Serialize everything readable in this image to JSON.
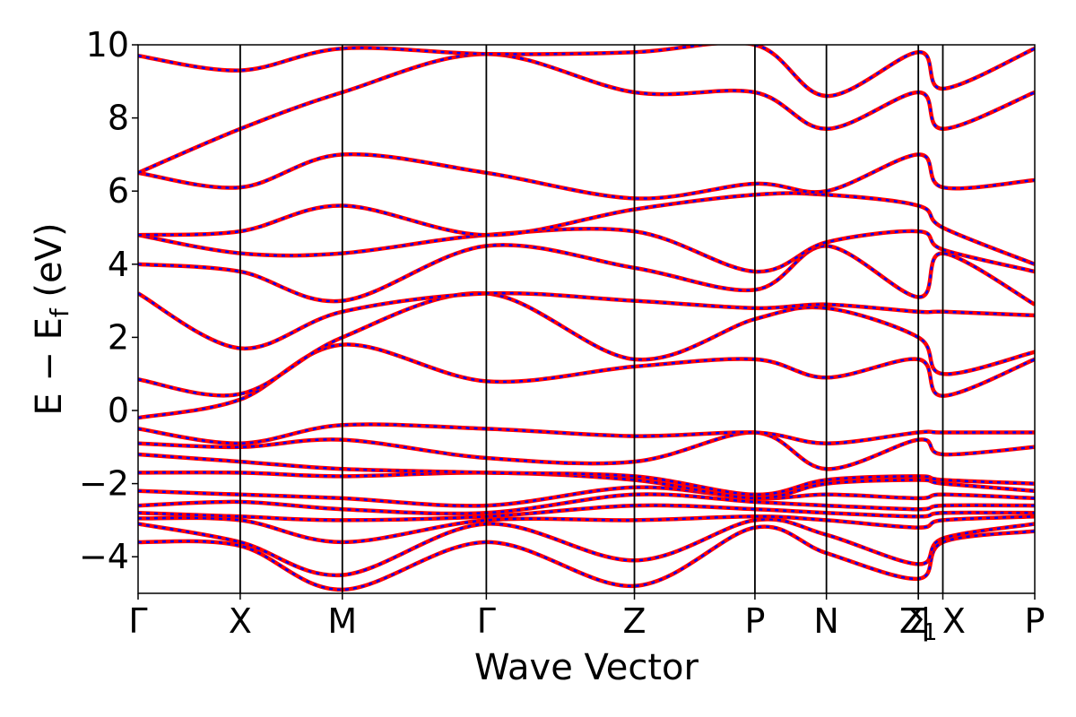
{
  "chart_data": {
    "type": "line",
    "title": "",
    "xlabel": "Wave Vector",
    "ylabel": "E − E",
    "ylabel_sub": "f",
    "ylabel_unit": " (eV)",
    "ylim": [
      -5,
      10
    ],
    "yticks": [
      -4,
      -2,
      0,
      2,
      4,
      6,
      8,
      10
    ],
    "ytick_labels": [
      "−4",
      "−2",
      "0",
      "2",
      "4",
      "6",
      "8",
      "10"
    ],
    "xlim": [
      0,
      8.78
    ],
    "kpoints": [
      {
        "label": "Γ",
        "x": 0.0
      },
      {
        "label": "X",
        "x": 1.0
      },
      {
        "label": "M",
        "x": 2.0
      },
      {
        "label": "Γ",
        "x": 3.41
      },
      {
        "label": "Z",
        "x": 4.86
      },
      {
        "label": "P",
        "x": 6.04
      },
      {
        "label": "N",
        "x": 6.74
      },
      {
        "label": "Σ",
        "x": 7.64
      },
      {
        "label": "Z1",
        "x": 7.64
      },
      {
        "label": "X",
        "x": 7.88
      },
      {
        "label": "P",
        "x": 8.78
      }
    ],
    "kpoint_tick_labels": [
      {
        "text": "Γ",
        "x": 0.0
      },
      {
        "text": "X",
        "x": 1.0
      },
      {
        "text": "M",
        "x": 2.0
      },
      {
        "text": "Γ",
        "x": 3.41
      },
      {
        "text": "Z",
        "x": 4.86
      },
      {
        "text": "P",
        "x": 6.04
      },
      {
        "text": "N",
        "x": 6.74
      },
      {
        "text": "Σ",
        "x": 7.64
      },
      {
        "text": "Z",
        "sub": "1",
        "x": 7.64
      },
      {
        "text": "| X",
        "x": 7.88
      },
      {
        "text": "P",
        "x": 8.78
      }
    ],
    "styles": {
      "band_colors": [
        "#ff0000",
        "#0000ff"
      ],
      "reference_style": "solid red",
      "overlay_style": "dashed blue"
    },
    "bands": [
      {
        "x": [
          0,
          1.0,
          2.0,
          3.41,
          4.86,
          6.04,
          6.74,
          7.64,
          7.88,
          8.78
        ],
        "y": [
          -3.6,
          -3.7,
          -4.9,
          -3.6,
          -4.8,
          -3.2,
          -3.9,
          -4.6,
          -3.6,
          -3.3
        ]
      },
      {
        "x": [
          0,
          1.0,
          2.0,
          3.41,
          4.86,
          6.04,
          6.74,
          7.64,
          7.88,
          8.78
        ],
        "y": [
          -3.1,
          -3.6,
          -4.5,
          -3.1,
          -4.1,
          -3.0,
          -3.4,
          -4.2,
          -3.5,
          -3.1
        ]
      },
      {
        "x": [
          0,
          1.0,
          2.0,
          3.41,
          4.86,
          6.04,
          6.74,
          7.64,
          7.88,
          8.78
        ],
        "y": [
          -2.95,
          -3.0,
          -3.6,
          -3.0,
          -3.0,
          -2.9,
          -3.0,
          -3.2,
          -3.0,
          -2.9
        ]
      },
      {
        "x": [
          0,
          1.0,
          2.0,
          3.41,
          4.86,
          6.04,
          6.74,
          7.64,
          7.88,
          8.78
        ],
        "y": [
          -2.8,
          -2.9,
          -3.0,
          -2.9,
          -2.6,
          -2.7,
          -2.8,
          -2.9,
          -2.8,
          -2.8
        ]
      },
      {
        "x": [
          0,
          1.0,
          2.0,
          3.41,
          4.86,
          6.04,
          6.74,
          7.64,
          7.88,
          8.78
        ],
        "y": [
          -2.6,
          -2.5,
          -2.7,
          -2.8,
          -2.3,
          -2.5,
          -2.6,
          -2.7,
          -2.6,
          -2.6
        ]
      },
      {
        "x": [
          0,
          1.0,
          2.0,
          3.41,
          4.86,
          6.04,
          6.74,
          7.64,
          7.88,
          8.78
        ],
        "y": [
          -2.2,
          -2.3,
          -2.4,
          -2.6,
          -2.1,
          -2.4,
          -2.3,
          -2.4,
          -2.3,
          -2.4
        ]
      },
      {
        "x": [
          0,
          1.0,
          2.0,
          3.41,
          4.86,
          6.04,
          6.74,
          7.64,
          7.88,
          8.78
        ],
        "y": [
          -1.7,
          -1.7,
          -1.8,
          -1.7,
          -1.9,
          -2.4,
          -2.0,
          -1.9,
          -2.0,
          -2.2
        ]
      },
      {
        "x": [
          0,
          1.0,
          2.0,
          3.41,
          4.86,
          6.04,
          6.74,
          7.64,
          7.88,
          8.78
        ],
        "y": [
          -1.2,
          -1.4,
          -1.6,
          -1.7,
          -1.8,
          -2.3,
          -1.9,
          -1.8,
          -1.9,
          -2.0
        ]
      },
      {
        "x": [
          0,
          1.0,
          2.0,
          3.41,
          4.86,
          6.04,
          6.74,
          7.64,
          7.88,
          8.78
        ],
        "y": [
          -0.9,
          -1.0,
          -0.8,
          -1.3,
          -1.4,
          -0.6,
          -1.6,
          -0.8,
          -1.2,
          -1.0
        ]
      },
      {
        "x": [
          0,
          1.0,
          2.0,
          3.41,
          4.86,
          6.04,
          6.74,
          7.64,
          7.88,
          8.78
        ],
        "y": [
          -0.5,
          -0.9,
          -0.4,
          -0.5,
          -0.7,
          -0.6,
          -0.9,
          -0.6,
          -0.6,
          -0.6
        ]
      },
      {
        "x": [
          0,
          1.0,
          2.0,
          3.41,
          4.86,
          6.04,
          6.74,
          7.64,
          7.88,
          8.78
        ],
        "y": [
          -0.2,
          0.3,
          1.8,
          0.8,
          1.2,
          1.4,
          0.9,
          1.4,
          0.4,
          1.4
        ]
      },
      {
        "x": [
          0,
          1.0,
          2.0,
          3.41,
          4.86,
          6.04,
          6.74,
          7.64,
          7.88,
          8.78
        ],
        "y": [
          0.85,
          0.45,
          2.0,
          3.2,
          1.4,
          2.5,
          2.8,
          2.0,
          1.0,
          1.6
        ]
      },
      {
        "x": [
          0,
          1.0,
          2.0,
          3.41,
          4.86,
          6.04,
          6.74,
          7.64,
          7.88,
          8.78
        ],
        "y": [
          3.2,
          1.7,
          2.7,
          3.2,
          3.0,
          2.8,
          2.9,
          2.7,
          2.7,
          2.6
        ]
      },
      {
        "x": [
          0,
          1.0,
          2.0,
          3.41,
          4.86,
          6.04,
          6.74,
          7.64,
          7.88,
          8.78
        ],
        "y": [
          4.0,
          3.8,
          3.0,
          4.5,
          3.9,
          3.3,
          4.5,
          3.1,
          4.3,
          2.9
        ]
      },
      {
        "x": [
          0,
          1.0,
          2.0,
          3.41,
          4.86,
          6.04,
          6.74,
          7.64,
          7.88,
          8.78
        ],
        "y": [
          4.8,
          4.3,
          4.3,
          4.8,
          4.9,
          3.8,
          4.6,
          4.9,
          4.4,
          3.8
        ]
      },
      {
        "x": [
          0,
          1.0,
          2.0,
          3.41,
          4.86,
          6.04,
          6.74,
          7.64,
          7.88,
          8.78
        ],
        "y": [
          4.8,
          4.9,
          5.6,
          4.8,
          5.5,
          5.9,
          5.9,
          5.6,
          5.0,
          4.0
        ]
      },
      {
        "x": [
          0,
          1.0,
          2.0,
          3.41,
          4.86,
          6.04,
          6.74,
          7.64,
          7.88,
          8.78
        ],
        "y": [
          6.5,
          6.1,
          7.0,
          6.5,
          5.8,
          6.2,
          6.0,
          7.0,
          6.1,
          6.3
        ]
      },
      {
        "x": [
          0,
          1.0,
          2.0,
          3.41,
          4.86,
          6.04,
          6.74,
          7.64,
          7.88,
          8.78
        ],
        "y": [
          6.5,
          7.7,
          8.7,
          9.75,
          8.7,
          8.7,
          7.7,
          8.7,
          7.7,
          8.7
        ]
      },
      {
        "x": [
          0,
          1.0,
          2.0,
          3.41,
          4.86,
          6.04,
          6.74,
          7.64,
          7.88,
          8.78
        ],
        "y": [
          9.7,
          9.3,
          9.9,
          9.75,
          9.8,
          10.0,
          8.6,
          9.8,
          8.8,
          9.9
        ]
      }
    ]
  }
}
